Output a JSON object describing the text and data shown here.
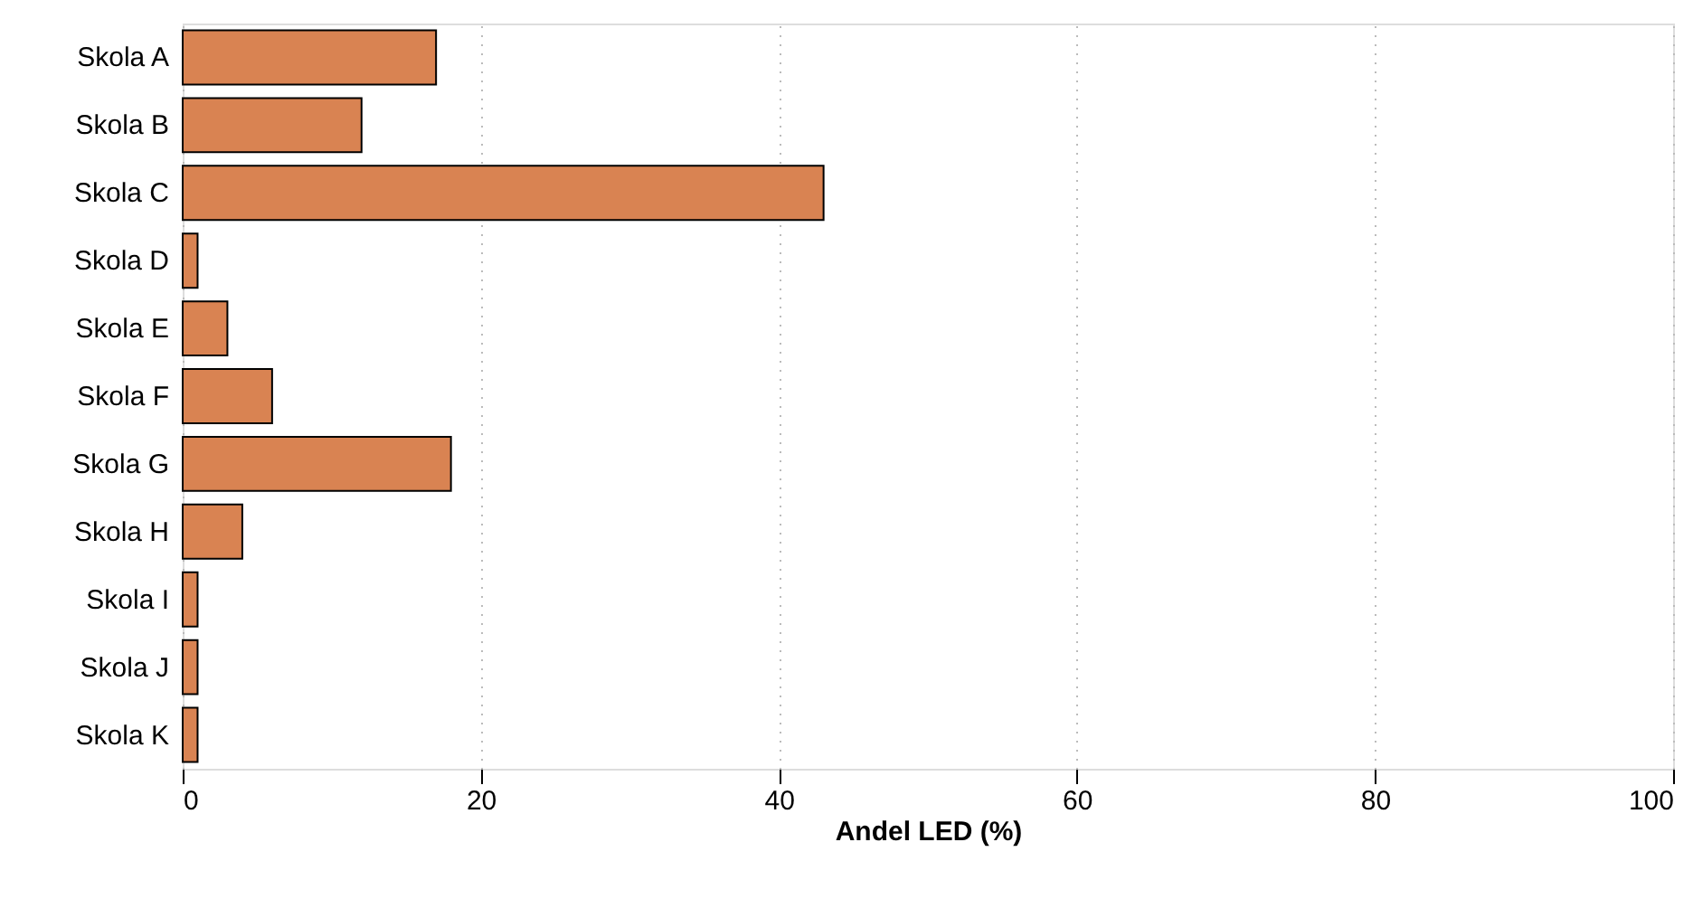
{
  "chart_data": {
    "type": "bar",
    "orientation": "horizontal",
    "xlabel": "Andel LED (%)",
    "categories": [
      "Skola A",
      "Skola B",
      "Skola C",
      "Skola D",
      "Skola E",
      "Skola F",
      "Skola G",
      "Skola H",
      "Skola I",
      "Skola J",
      "Skola K"
    ],
    "values": [
      17,
      12,
      43,
      1,
      3,
      6,
      18,
      4,
      1,
      1,
      1
    ],
    "color": "#d98352",
    "xlim": [
      0,
      100
    ],
    "xticks": [
      0,
      20,
      40,
      60,
      80,
      100
    ],
    "grid": "x"
  }
}
